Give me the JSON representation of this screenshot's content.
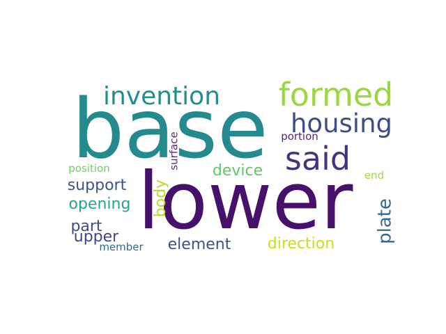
{
  "words": [
    {
      "text": "base",
      "color": "#238a8d"
    },
    {
      "text": "lower",
      "color": "#46106b"
    },
    {
      "text": "formed",
      "color": "#9ad740"
    },
    {
      "text": "invention",
      "color": "#218f8d"
    },
    {
      "text": "housing",
      "color": "#3d4d8a"
    },
    {
      "text": "said",
      "color": "#46337f"
    },
    {
      "text": "portion",
      "color": "#5b1f74"
    },
    {
      "text": "surface",
      "color": "#5c2a7a"
    },
    {
      "text": "device",
      "color": "#5ec962"
    },
    {
      "text": "position",
      "color": "#6fd160"
    },
    {
      "text": "end",
      "color": "#a2da37"
    },
    {
      "text": "support",
      "color": "#3b528b"
    },
    {
      "text": "opening",
      "color": "#22a884"
    },
    {
      "text": "body",
      "color": "#b5de2b"
    },
    {
      "text": "plate",
      "color": "#31688e"
    },
    {
      "text": "part",
      "color": "#3e4a89"
    },
    {
      "text": "upper",
      "color": "#414487"
    },
    {
      "text": "element",
      "color": "#3a538b"
    },
    {
      "text": "direction",
      "color": "#c8e020"
    },
    {
      "text": "member",
      "color": "#306a8e"
    }
  ]
}
